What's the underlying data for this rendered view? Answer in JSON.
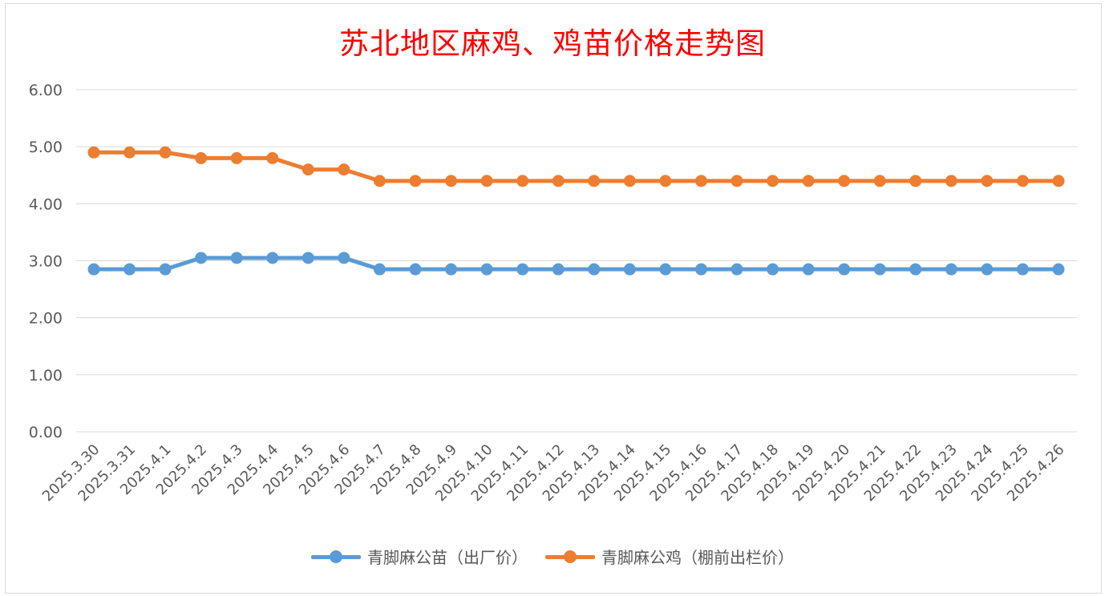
{
  "chart_data": {
    "type": "line",
    "title": "苏北地区麻鸡、鸡苗价格走势图",
    "xlabel": "",
    "ylabel": "",
    "ylim": [
      0,
      6
    ],
    "y_ticks": [
      "0.00",
      "1.00",
      "2.00",
      "3.00",
      "4.00",
      "5.00",
      "6.00"
    ],
    "grid": true,
    "legend_position": "bottom",
    "categories": [
      "2025.3.30",
      "2025.3.31",
      "2025.4.1",
      "2025.4.2",
      "2025.4.3",
      "2025.4.4",
      "2025.4.5",
      "2025.4.6",
      "2025.4.7",
      "2025.4.8",
      "2025.4.9",
      "2025.4.10",
      "2025.4.11",
      "2025.4.12",
      "2025.4.13",
      "2025.4.14",
      "2025.4.15",
      "2025.4.16",
      "2025.4.17",
      "2025.4.18",
      "2025.4.19",
      "2025.4.20",
      "2025.4.21",
      "2025.4.22",
      "2025.4.23",
      "2025.4.24",
      "2025.4.25",
      "2025.4.26"
    ],
    "series": [
      {
        "name": "青脚麻公苗（出厂价）",
        "color": "#5b9bd5",
        "values": [
          2.85,
          2.85,
          2.85,
          3.05,
          3.05,
          3.05,
          3.05,
          3.05,
          2.85,
          2.85,
          2.85,
          2.85,
          2.85,
          2.85,
          2.85,
          2.85,
          2.85,
          2.85,
          2.85,
          2.85,
          2.85,
          2.85,
          2.85,
          2.85,
          2.85,
          2.85,
          2.85,
          2.85
        ]
      },
      {
        "name": "青脚麻公鸡（棚前出栏价）",
        "color": "#ed7d31",
        "values": [
          4.9,
          4.9,
          4.9,
          4.8,
          4.8,
          4.8,
          4.6,
          4.6,
          4.4,
          4.4,
          4.4,
          4.4,
          4.4,
          4.4,
          4.4,
          4.4,
          4.4,
          4.4,
          4.4,
          4.4,
          4.4,
          4.4,
          4.4,
          4.4,
          4.4,
          4.4,
          4.4,
          4.4
        ]
      }
    ]
  }
}
